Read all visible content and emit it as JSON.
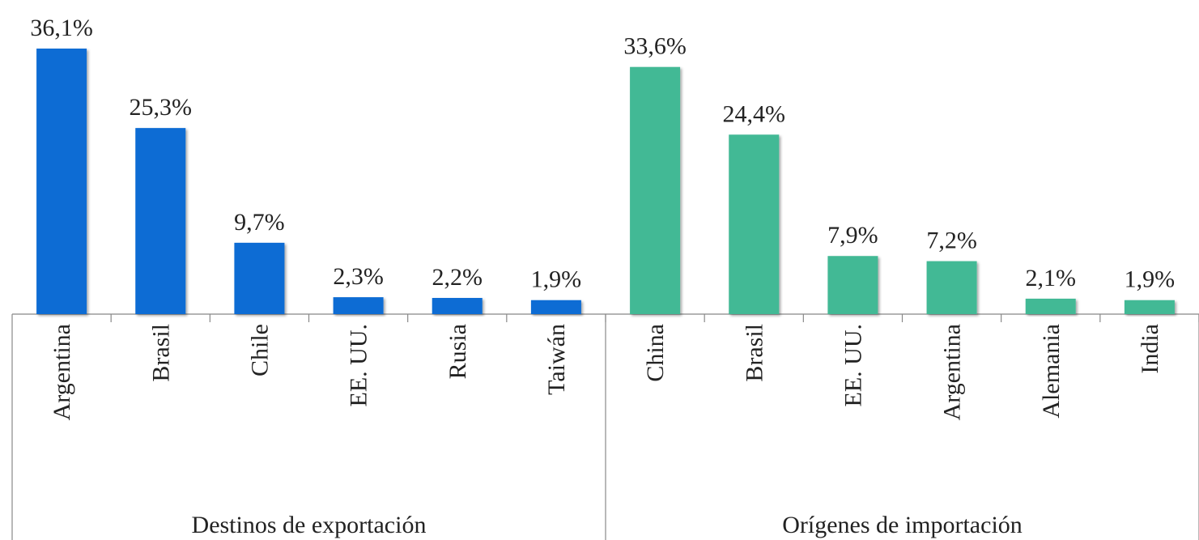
{
  "chart_data": {
    "type": "bar",
    "groups": [
      {
        "name": "Destinos de exportación",
        "color": "#0a6cd4",
        "categories": [
          "Argentina",
          "Brasil",
          "Chile",
          "EE. UU.",
          "Rusia",
          "Taiwán"
        ],
        "values": [
          36.1,
          25.3,
          9.7,
          2.3,
          2.2,
          1.9
        ],
        "value_labels": [
          "36,1%",
          "25,3%",
          "9,7%",
          "2,3%",
          "2,2%",
          "1,9%"
        ]
      },
      {
        "name": "Orígenes de importación",
        "color": "#42b995",
        "categories": [
          "China",
          "Brasil",
          "EE. UU.",
          "Argentina",
          "Alemania",
          "India"
        ],
        "values": [
          33.6,
          24.4,
          7.9,
          7.2,
          2.1,
          1.9
        ],
        "value_labels": [
          "33,6%",
          "24,4%",
          "7,9%",
          "7,2%",
          "2,1%",
          "1,9%"
        ]
      }
    ]
  }
}
